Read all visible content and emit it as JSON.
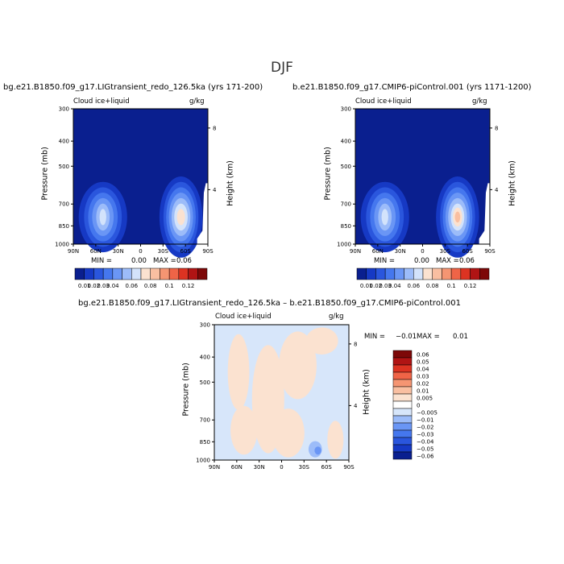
{
  "title": "DJF",
  "panels": [
    {
      "title": "bg.e21.B1850.f09_g17.LIGtransient_redo_126.5ka (yrs 171-200)",
      "field_label": "Cloud ice+liquid",
      "units": "g/kg",
      "ylabel": "Pressure (mb)",
      "right_label": "Height (km)",
      "yticks": [
        "300",
        "400",
        "500",
        "700",
        "850",
        "1000"
      ],
      "right_ticks": [
        "8",
        "4"
      ],
      "xticks": [
        "90N",
        "60N",
        "30N",
        "0",
        "30S",
        "60S",
        "90S"
      ],
      "min_label": "MIN =",
      "min_value": "0.00",
      "max_label": "MAX =",
      "max_value": "0.06"
    },
    {
      "title": "b.e21.B1850.f09_g17.CMIP6-piControl.001 (yrs 1171-1200)",
      "field_label": "Cloud ice+liquid",
      "units": "g/kg",
      "ylabel": "Pressure (mb)",
      "right_label": "Height (km)",
      "yticks": [
        "300",
        "400",
        "500",
        "700",
        "850",
        "1000"
      ],
      "right_ticks": [
        "8",
        "4"
      ],
      "xticks": [
        "90N",
        "60N",
        "30N",
        "0",
        "30S",
        "60S",
        "90S"
      ],
      "min_label": "MIN =",
      "min_value": "0.00",
      "max_label": "MAX =",
      "max_value": "0.06"
    },
    {
      "title": "bg.e21.B1850.f09_g17.LIGtransient_redo_126.5ka – b.e21.B1850.f09_g17.CMIP6-piControl.001",
      "field_label": "Cloud ice+liquid",
      "units": "g/kg",
      "ylabel": "Pressure (mb)",
      "right_label": "Height (km)",
      "yticks": [
        "300",
        "400",
        "500",
        "700",
        "850",
        "1000"
      ],
      "right_ticks": [
        "8",
        "4"
      ],
      "xticks": [
        "90N",
        "60N",
        "30N",
        "0",
        "30S",
        "60S",
        "90S"
      ],
      "min_label": "MIN =",
      "min_value": "−0.01",
      "max_label": "MAX =",
      "max_value": "0.01"
    }
  ],
  "colorbar_top": {
    "labels": [
      "0.01",
      "0.02",
      "0.03",
      "0.04",
      "0.06",
      "0.08",
      "0.1",
      "0.12"
    ],
    "colors": [
      "#0a1f8f",
      "#1639c4",
      "#2a56dd",
      "#4577ee",
      "#6a96f5",
      "#9cbcf9",
      "#d3e3fb",
      "#fbe2d0",
      "#f9bfa1",
      "#f59572",
      "#ef6447",
      "#dc3322",
      "#b01414",
      "#7d0808"
    ]
  },
  "colorbar_diff": {
    "labels": [
      "0.06",
      "0.05",
      "0.04",
      "0.03",
      "0.02",
      "0.01",
      "0.005",
      "0",
      "−0.005",
      "−0.01",
      "−0.02",
      "−0.03",
      "−0.04",
      "−0.05",
      "−0.06"
    ],
    "colors": [
      "#7d0808",
      "#b01414",
      "#dc3322",
      "#ef6447",
      "#f59572",
      "#f9bfa1",
      "#fbe2d0",
      "#ffffff",
      "#d7e6fa",
      "#9cbcf9",
      "#6a96f5",
      "#4577ee",
      "#2a56dd",
      "#1639c4",
      "#0a1f8f"
    ]
  },
  "chart_data": [
    {
      "type": "heatmap",
      "title": "bg.e21.B1850.f09_g17.LIGtransient_redo_126.5ka (yrs 171-200)",
      "variable": "Cloud ice+liquid",
      "units": "g/kg",
      "xlabel": "",
      "ylabel": "Pressure (mb)",
      "x_range": [
        "90N",
        "90S"
      ],
      "y_range_mb": [
        1000,
        300
      ],
      "min": 0.0,
      "max": 0.06,
      "features": [
        {
          "location": "~60N, 850-900 mb",
          "peak": 0.04
        },
        {
          "location": "~50S, 850 mb",
          "peak": 0.06
        }
      ]
    },
    {
      "type": "heatmap",
      "title": "b.e21.B1850.f09_g17.CMIP6-piControl.001 (yrs 1171-1200)",
      "variable": "Cloud ice+liquid",
      "units": "g/kg",
      "xlabel": "",
      "ylabel": "Pressure (mb)",
      "x_range": [
        "90N",
        "90S"
      ],
      "y_range_mb": [
        1000,
        300
      ],
      "min": 0.0,
      "max": 0.06,
      "features": [
        {
          "location": "~60N, 850-900 mb",
          "peak": 0.04
        },
        {
          "location": "~50S, 850 mb",
          "peak": 0.06
        }
      ]
    },
    {
      "type": "heatmap",
      "title": "bg.e21.B1850.f09_g17.LIGtransient_redo_126.5ka – b.e21.B1850.f09_g17.CMIP6-piControl.001",
      "variable": "Cloud ice+liquid",
      "units": "g/kg",
      "xlabel": "",
      "ylabel": "Pressure (mb)",
      "x_range": [
        "90N",
        "90S"
      ],
      "y_range_mb": [
        1000,
        300
      ],
      "min": -0.01,
      "max": 0.01
    }
  ]
}
